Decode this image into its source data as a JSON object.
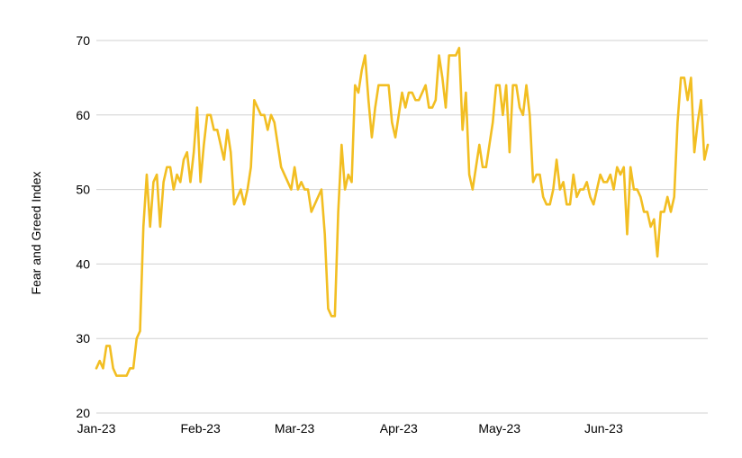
{
  "chart_data": {
    "type": "line",
    "title": "",
    "xlabel": "",
    "ylabel": "Fear and Greed Index",
    "ylim": [
      20,
      70
    ],
    "yticks": [
      "20",
      "30",
      "40",
      "50",
      "60",
      "70"
    ],
    "xticks": [
      "Jan-23",
      "Feb-23",
      "Mar-23",
      "Apr-23",
      "May-23",
      "Jun-23"
    ],
    "grid": true,
    "legend": "none",
    "color": "#F2BE22",
    "series": [
      {
        "x": [
          "2023-01-01",
          "2023-01-02",
          "2023-01-03",
          "2023-01-04",
          "2023-01-05",
          "2023-01-06",
          "2023-01-07",
          "2023-01-08",
          "2023-01-09",
          "2023-01-10",
          "2023-01-11",
          "2023-01-12",
          "2023-01-13",
          "2023-01-14",
          "2023-01-15",
          "2023-01-16",
          "2023-01-17",
          "2023-01-18",
          "2023-01-19",
          "2023-01-20",
          "2023-01-21",
          "2023-01-22",
          "2023-01-23",
          "2023-01-24",
          "2023-01-25",
          "2023-01-26",
          "2023-01-27",
          "2023-01-28",
          "2023-01-29",
          "2023-01-30",
          "2023-01-31",
          "2023-02-01",
          "2023-02-02",
          "2023-02-03",
          "2023-02-04",
          "2023-02-05",
          "2023-02-06",
          "2023-02-07",
          "2023-02-08",
          "2023-02-09",
          "2023-02-10",
          "2023-02-11",
          "2023-02-12",
          "2023-02-13",
          "2023-02-14",
          "2023-02-15",
          "2023-02-16",
          "2023-02-17",
          "2023-02-18",
          "2023-02-19",
          "2023-02-20",
          "2023-02-21",
          "2023-02-22",
          "2023-02-23",
          "2023-02-24",
          "2023-02-25",
          "2023-02-26",
          "2023-02-27",
          "2023-02-28",
          "2023-03-01",
          "2023-03-02",
          "2023-03-03",
          "2023-03-04",
          "2023-03-05",
          "2023-03-06",
          "2023-03-07",
          "2023-03-08",
          "2023-03-09",
          "2023-03-10",
          "2023-03-11",
          "2023-03-12",
          "2023-03-13",
          "2023-03-14",
          "2023-03-15",
          "2023-03-16",
          "2023-03-17",
          "2023-03-18",
          "2023-03-19",
          "2023-03-20",
          "2023-03-21",
          "2023-03-22",
          "2023-03-23",
          "2023-03-24",
          "2023-03-25",
          "2023-03-26",
          "2023-03-27",
          "2023-03-28",
          "2023-03-29",
          "2023-03-30",
          "2023-03-31",
          "2023-04-01",
          "2023-04-02",
          "2023-04-03",
          "2023-04-04",
          "2023-04-05",
          "2023-04-06",
          "2023-04-07",
          "2023-04-08",
          "2023-04-09",
          "2023-04-10",
          "2023-04-11",
          "2023-04-12",
          "2023-04-13",
          "2023-04-14",
          "2023-04-15",
          "2023-04-16",
          "2023-04-17",
          "2023-04-18",
          "2023-04-19",
          "2023-04-20",
          "2023-04-21",
          "2023-04-22",
          "2023-04-23",
          "2023-04-24",
          "2023-04-25",
          "2023-04-26",
          "2023-04-27",
          "2023-04-28",
          "2023-04-29",
          "2023-04-30",
          "2023-05-01",
          "2023-05-02",
          "2023-05-03",
          "2023-05-04",
          "2023-05-05",
          "2023-05-06",
          "2023-05-07",
          "2023-05-08",
          "2023-05-09",
          "2023-05-10",
          "2023-05-11",
          "2023-05-12",
          "2023-05-13",
          "2023-05-14",
          "2023-05-15",
          "2023-05-16",
          "2023-05-17",
          "2023-05-18",
          "2023-05-19",
          "2023-05-20",
          "2023-05-21",
          "2023-05-22",
          "2023-05-23",
          "2023-05-24",
          "2023-05-25",
          "2023-05-26",
          "2023-05-27",
          "2023-05-28",
          "2023-05-29",
          "2023-05-30",
          "2023-05-31",
          "2023-06-01",
          "2023-06-02",
          "2023-06-03",
          "2023-06-04",
          "2023-06-05",
          "2023-06-06",
          "2023-06-07",
          "2023-06-08",
          "2023-06-09",
          "2023-06-10",
          "2023-06-11",
          "2023-06-12",
          "2023-06-13",
          "2023-06-14",
          "2023-06-15",
          "2023-06-16",
          "2023-06-17",
          "2023-06-18",
          "2023-06-19",
          "2023-06-20",
          "2023-06-21",
          "2023-06-22",
          "2023-06-23",
          "2023-06-24",
          "2023-06-25",
          "2023-06-26",
          "2023-06-27",
          "2023-06-28",
          "2023-06-29",
          "2023-06-30",
          "2023-07-01",
          "2023-07-02"
        ],
        "values": [
          26,
          27,
          26,
          29,
          29,
          26,
          25,
          25,
          25,
          25,
          26,
          26,
          30,
          31,
          45,
          52,
          45,
          51,
          52,
          45,
          51,
          53,
          53,
          50,
          52,
          51,
          54,
          55,
          51,
          55,
          61,
          51,
          56,
          60,
          60,
          58,
          58,
          56,
          54,
          58,
          55,
          48,
          49,
          50,
          48,
          50,
          53,
          62,
          61,
          60,
          60,
          58,
          60,
          59,
          56,
          53,
          52,
          51,
          50,
          53,
          50,
          51,
          50,
          50,
          47,
          48,
          49,
          50,
          44,
          34,
          33,
          33,
          47,
          56,
          50,
          52,
          51,
          64,
          63,
          66,
          68,
          62,
          57,
          61,
          64,
          64,
          64,
          64,
          59,
          57,
          60,
          63,
          61,
          63,
          63,
          62,
          62,
          63,
          64,
          61,
          61,
          62,
          68,
          65,
          61,
          68,
          68,
          68,
          69,
          58,
          63,
          52,
          50,
          53,
          56,
          53,
          53,
          56,
          59,
          64,
          64,
          60,
          64,
          55,
          64,
          64,
          61,
          60,
          64,
          60,
          51,
          52,
          52,
          49,
          48,
          48,
          50,
          54,
          50,
          51,
          48,
          48,
          52,
          49,
          50,
          50,
          51,
          49,
          48,
          50,
          52,
          51,
          51,
          52,
          50,
          53,
          52,
          53,
          44,
          53,
          50,
          50,
          49,
          47,
          47,
          45,
          46,
          41,
          47,
          47,
          49,
          47,
          49,
          59,
          65,
          65,
          62,
          65,
          55,
          59,
          62,
          54,
          56
        ]
      }
    ]
  }
}
